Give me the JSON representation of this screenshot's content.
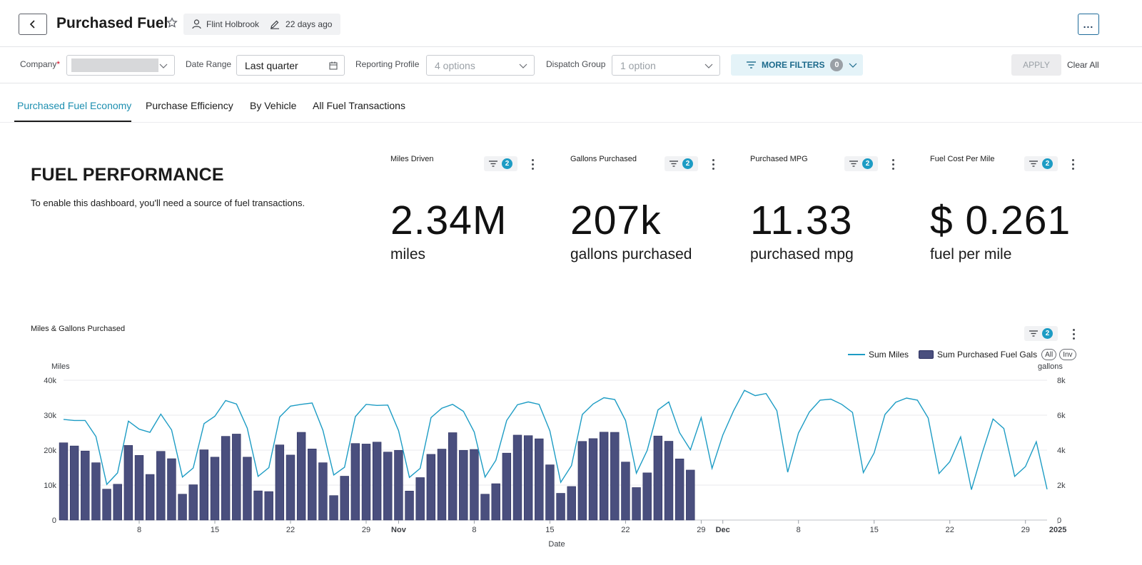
{
  "header": {
    "title": "Purchased Fuel",
    "owner": "Flint Holbrook",
    "edited": "22 days ago",
    "more_menu": "..."
  },
  "filters": {
    "company_label": "Company",
    "company_required": "*",
    "date_range_label": "Date Range",
    "date_range_value": "Last quarter",
    "reporting_profile_label": "Reporting Profile",
    "reporting_profile_placeholder": "4 options",
    "dispatch_group_label": "Dispatch Group",
    "dispatch_group_placeholder": "1 option",
    "more_filters_label": "MORE FILTERS",
    "more_filters_count": "0",
    "apply_label": "APPLY",
    "clear_all_label": "Clear All"
  },
  "tabs": [
    {
      "label": "Purchased Fuel Economy",
      "active": true
    },
    {
      "label": "Purchase Efficiency",
      "active": false
    },
    {
      "label": "By Vehicle",
      "active": false
    },
    {
      "label": "All Fuel Transactions",
      "active": false
    }
  ],
  "performance": {
    "title": "FUEL PERFORMANCE",
    "description": "To enable this dashboard, you'll need a source of fuel transactions."
  },
  "kpis": [
    {
      "label": "Miles Driven",
      "value": "2.34M",
      "unit": "miles",
      "filter_count": "2"
    },
    {
      "label": "Gallons Purchased",
      "value": "207k",
      "unit": "gallons purchased",
      "filter_count": "2"
    },
    {
      "label": "Purchased MPG",
      "value": "11.33",
      "unit": "purchased mpg",
      "filter_count": "2"
    },
    {
      "label": "Fuel Cost Per Mile",
      "value": "$ 0.261",
      "unit": "fuel per mile",
      "filter_count": "2"
    }
  ],
  "colors": {
    "accent": "#1d9cc4",
    "bar": "#4a4f7e",
    "line": "#1d9cc4",
    "active_tab": "#1d8fb0"
  },
  "chart_title": "Miles & Gallons Purchased",
  "chart_filter_count": "2",
  "legend": {
    "line_label": "Sum Miles",
    "bar_label": "Sum Purchased Fuel Gals",
    "all_label": "All",
    "inv_label": "Inv"
  },
  "chart_data": {
    "type": "bar",
    "title": "Miles & Gallons Purchased",
    "xlabel": "Date",
    "ylabel_left": "Miles",
    "ylabel_right": "gallons",
    "ylim_left": [
      0,
      40000
    ],
    "ylim_right": [
      0,
      8000
    ],
    "yticks_left": [
      "0",
      "10k",
      "20k",
      "30k",
      "40k"
    ],
    "yticks_right": [
      "0",
      "2k",
      "4k",
      "6k",
      "8k"
    ],
    "grid": true,
    "legend_position": "top-right",
    "x_range": [
      "2024-10-01",
      "2024-12-31"
    ],
    "x_ticks": [
      {
        "label": "8",
        "date": "2024-10-08",
        "bold": false
      },
      {
        "label": "15",
        "date": "2024-10-15",
        "bold": false
      },
      {
        "label": "22",
        "date": "2024-10-22",
        "bold": false
      },
      {
        "label": "29",
        "date": "2024-10-29",
        "bold": false
      },
      {
        "label": "Nov",
        "date": "2024-11-01",
        "bold": true
      },
      {
        "label": "8",
        "date": "2024-11-08",
        "bold": false
      },
      {
        "label": "15",
        "date": "2024-11-15",
        "bold": false
      },
      {
        "label": "22",
        "date": "2024-11-22",
        "bold": false
      },
      {
        "label": "29",
        "date": "2024-11-29",
        "bold": false
      },
      {
        "label": "Dec",
        "date": "2024-12-01",
        "bold": true
      },
      {
        "label": "8",
        "date": "2024-12-08",
        "bold": false
      },
      {
        "label": "15",
        "date": "2024-12-15",
        "bold": false
      },
      {
        "label": "22",
        "date": "2024-12-22",
        "bold": false
      },
      {
        "label": "29",
        "date": "2024-12-29",
        "bold": false
      },
      {
        "label": "2025",
        "date": "2025-01-01",
        "bold": true
      }
    ],
    "series": [
      {
        "name": "Sum Miles",
        "kind": "line",
        "axis": "left",
        "dates": [
          "2024-10-01",
          "2024-10-02",
          "2024-10-03",
          "2024-10-04",
          "2024-10-05",
          "2024-10-06",
          "2024-10-07",
          "2024-10-08",
          "2024-10-09",
          "2024-10-10",
          "2024-10-11",
          "2024-10-12",
          "2024-10-13",
          "2024-10-14",
          "2024-10-15",
          "2024-10-16",
          "2024-10-17",
          "2024-10-18",
          "2024-10-19",
          "2024-10-20",
          "2024-10-21",
          "2024-10-22",
          "2024-10-23",
          "2024-10-24",
          "2024-10-25",
          "2024-10-26",
          "2024-10-27",
          "2024-10-28",
          "2024-10-29",
          "2024-10-30",
          "2024-10-31",
          "2024-11-01",
          "2024-11-02",
          "2024-11-03",
          "2024-11-04",
          "2024-11-05",
          "2024-11-06",
          "2024-11-07",
          "2024-11-08",
          "2024-11-09",
          "2024-11-10",
          "2024-11-11",
          "2024-11-12",
          "2024-11-13",
          "2024-11-14",
          "2024-11-15",
          "2024-11-16",
          "2024-11-17",
          "2024-11-18",
          "2024-11-19",
          "2024-11-20",
          "2024-11-21",
          "2024-11-22",
          "2024-11-23",
          "2024-11-24",
          "2024-11-25",
          "2024-11-26",
          "2024-11-27",
          "2024-11-28",
          "2024-11-29",
          "2024-11-30",
          "2024-12-01",
          "2024-12-02",
          "2024-12-03",
          "2024-12-04",
          "2024-12-05",
          "2024-12-06",
          "2024-12-07",
          "2024-12-08",
          "2024-12-09",
          "2024-12-10",
          "2024-12-11",
          "2024-12-12",
          "2024-12-13",
          "2024-12-14",
          "2024-12-15",
          "2024-12-16",
          "2024-12-17",
          "2024-12-18",
          "2024-12-19",
          "2024-12-20",
          "2024-12-21",
          "2024-12-22",
          "2024-12-23",
          "2024-12-24",
          "2024-12-25",
          "2024-12-26",
          "2024-12-27",
          "2024-12-28",
          "2024-12-29",
          "2024-12-30",
          "2024-12-31"
        ],
        "values": [
          28800,
          28500,
          28500,
          23900,
          10200,
          13500,
          28300,
          26000,
          25100,
          30300,
          25800,
          12300,
          14900,
          27600,
          29700,
          34200,
          33200,
          26300,
          12500,
          15000,
          29500,
          32600,
          33100,
          33500,
          25700,
          12900,
          15100,
          29600,
          33100,
          32800,
          32900,
          25600,
          12200,
          14800,
          29300,
          32000,
          33100,
          31100,
          25200,
          12300,
          17100,
          28500,
          33000,
          33800,
          33100,
          25500,
          10800,
          15600,
          30200,
          33200,
          35000,
          34500,
          28500,
          13400,
          19900,
          31500,
          33800,
          25000,
          20100,
          29300,
          14800,
          24300,
          31300,
          37100,
          35600,
          36200,
          31300,
          13700,
          24900,
          30900,
          34300,
          34600,
          33100,
          30800,
          13600,
          19200,
          30200,
          33700,
          34900,
          34300,
          29200,
          13300,
          16700,
          23800,
          8700,
          19200,
          28900,
          26200,
          12500,
          15300,
          22400,
          8800
        ],
        "note_values_after": "2024-12-31"
      },
      {
        "name": "Sum Purchased Fuel Gals",
        "kind": "bar",
        "axis": "right",
        "dates": [
          "2024-10-01",
          "2024-10-02",
          "2024-10-03",
          "2024-10-04",
          "2024-10-05",
          "2024-10-06",
          "2024-10-07",
          "2024-10-08",
          "2024-10-09",
          "2024-10-10",
          "2024-10-11",
          "2024-10-12",
          "2024-10-13",
          "2024-10-14",
          "2024-10-15",
          "2024-10-16",
          "2024-10-17",
          "2024-10-18",
          "2024-10-19",
          "2024-10-20",
          "2024-10-21",
          "2024-10-22",
          "2024-10-23",
          "2024-10-24",
          "2024-10-25",
          "2024-10-26",
          "2024-10-27",
          "2024-10-28",
          "2024-10-29",
          "2024-10-30",
          "2024-10-31",
          "2024-11-01",
          "2024-11-02",
          "2024-11-03",
          "2024-11-04",
          "2024-11-05",
          "2024-11-06",
          "2024-11-07",
          "2024-11-08",
          "2024-11-09",
          "2024-11-10",
          "2024-11-11",
          "2024-11-12",
          "2024-11-13",
          "2024-11-14",
          "2024-11-15",
          "2024-11-16",
          "2024-11-17",
          "2024-11-18",
          "2024-11-19",
          "2024-11-20",
          "2024-11-21",
          "2024-11-22",
          "2024-11-23",
          "2024-11-24",
          "2024-11-25",
          "2024-11-26",
          "2024-11-27",
          "2024-11-28",
          "2024-11-29"
        ],
        "values": [
          4420,
          4240,
          3950,
          3280,
          1770,
          2050,
          4270,
          3700,
          2610,
          3930,
          3510,
          1480,
          2020,
          4020,
          3600,
          4790,
          4920,
          3600,
          1670,
          1630,
          4300,
          3720,
          5020,
          4070,
          3280,
          1400,
          2510,
          4380,
          4350,
          4460,
          3890,
          3990,
          1660,
          2430,
          3760,
          4060,
          5000,
          3990,
          4040,
          1480,
          2080,
          3830,
          4860,
          4830,
          4650,
          3160,
          1530,
          1920,
          4500,
          4660,
          5030,
          5020,
          3320,
          1860,
          2700,
          4810,
          4510,
          3500,
          2860,
          0
        ]
      }
    ]
  }
}
